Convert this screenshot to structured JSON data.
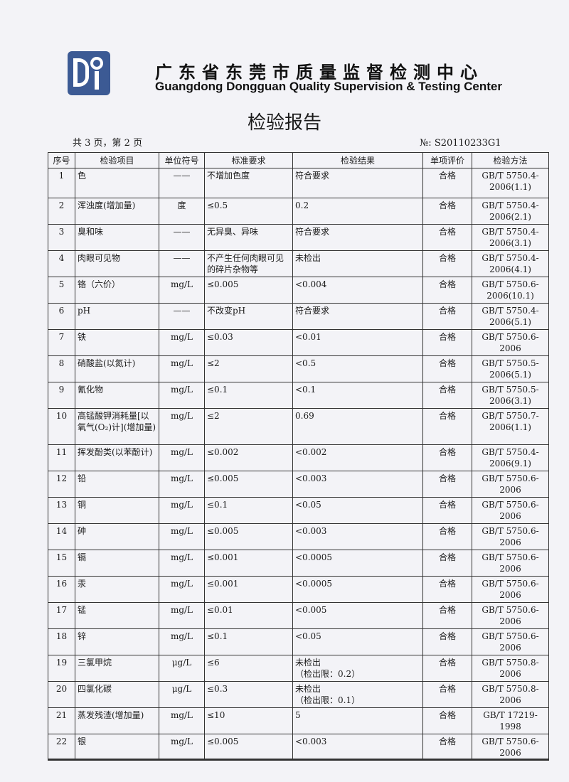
{
  "header": {
    "logo_text": "DQT",
    "org_cn": "广东省东莞市质量监督检测中心",
    "org_en": "Guangdong Dongguan Quality Supervision & Testing Center",
    "title": "检验报告",
    "page_info": "共 3 页，第 2 页",
    "report_no": "№: S20110233G1"
  },
  "table": {
    "columns": [
      "序号",
      "检验项目",
      "单位符号",
      "标准要求",
      "检验结果",
      "单项评价",
      "检验方法"
    ],
    "rows": [
      [
        "1",
        "色",
        "——",
        "不增加色度",
        "符合要求",
        "合格",
        "GB/T 5750.4-\n2006(1.1)"
      ],
      [
        "2",
        "浑浊度(增加量)",
        "度",
        "≤0.5",
        "0.2",
        "合格",
        "GB/T 5750.4-\n2006(2.1)"
      ],
      [
        "3",
        "臭和味",
        "——",
        "无异臭、异味",
        "符合要求",
        "合格",
        "GB/T 5750.4-\n2006(3.1)"
      ],
      [
        "4",
        "肉眼可见物",
        "——",
        "不产生任何肉眼可见的碎片杂物等",
        "未检出",
        "合格",
        "GB/T 5750.4-\n2006(4.1)"
      ],
      [
        "5",
        "铬（六价）",
        "mg/L",
        "≤0.005",
        "<0.004",
        "合格",
        "GB/T 5750.6-\n2006(10.1)"
      ],
      [
        "6",
        "pH",
        "——",
        "不改变pH",
        "符合要求",
        "合格",
        "GB/T 5750.4-\n2006(5.1)"
      ],
      [
        "7",
        "铁",
        "mg/L",
        "≤0.03",
        "<0.01",
        "合格",
        "GB/T 5750.6-\n2006"
      ],
      [
        "8",
        "硝酸盐(以氮计)",
        "mg/L",
        "≤2",
        "<0.5",
        "合格",
        "GB/T 5750.5-\n2006(5.1)"
      ],
      [
        "9",
        "氰化物",
        "mg/L",
        "≤0.1",
        "<0.1",
        "合格",
        "GB/T 5750.5-\n2006(3.1)"
      ],
      [
        "10",
        "高锰酸钾消耗量[以氧气(O₂)计](增加量)",
        "mg/L",
        "≤2",
        "0.69",
        "合格",
        "GB/T 5750.7-\n2006(1.1)"
      ],
      [
        "11",
        "挥发酚类(以苯酚计)",
        "mg/L",
        "≤0.002",
        "<0.002",
        "合格",
        "GB/T 5750.4-\n2006(9.1)"
      ],
      [
        "12",
        "铅",
        "mg/L",
        "≤0.005",
        "<0.003",
        "合格",
        "GB/T 5750.6-\n2006"
      ],
      [
        "13",
        "铜",
        "mg/L",
        "≤0.1",
        "<0.05",
        "合格",
        "GB/T 5750.6-\n2006"
      ],
      [
        "14",
        "砷",
        "mg/L",
        "≤0.005",
        "<0.003",
        "合格",
        "GB/T 5750.6-\n2006"
      ],
      [
        "15",
        "镉",
        "mg/L",
        "≤0.001",
        "<0.0005",
        "合格",
        "GB/T 5750.6-\n2006"
      ],
      [
        "16",
        "汞",
        "mg/L",
        "≤0.001",
        "<0.0005",
        "合格",
        "GB/T 5750.6-\n2006"
      ],
      [
        "17",
        "锰",
        "mg/L",
        "≤0.01",
        "<0.005",
        "合格",
        "GB/T 5750.6-\n2006"
      ],
      [
        "18",
        "锌",
        "mg/L",
        "≤0.1",
        "<0.05",
        "合格",
        "GB/T 5750.6-\n2006"
      ],
      [
        "19",
        "三氯甲烷",
        "μg/L",
        "≤6",
        "未检出\n（检出限：0.2）",
        "合格",
        "GB/T 5750.8-\n2006"
      ],
      [
        "20",
        "四氯化碳",
        "μg/L",
        "≤0.3",
        "未检出\n（检出限：0.1）",
        "合格",
        "GB/T 5750.8-\n2006"
      ],
      [
        "21",
        "蒸发残渣(增加量)",
        "mg/L",
        "≤10",
        "5",
        "合格",
        "GB/T 17219-\n1998"
      ],
      [
        "22",
        "银",
        "mg/L",
        "≤0.005",
        "<0.003",
        "合格",
        "GB/T 5750.6-\n2006"
      ]
    ]
  }
}
